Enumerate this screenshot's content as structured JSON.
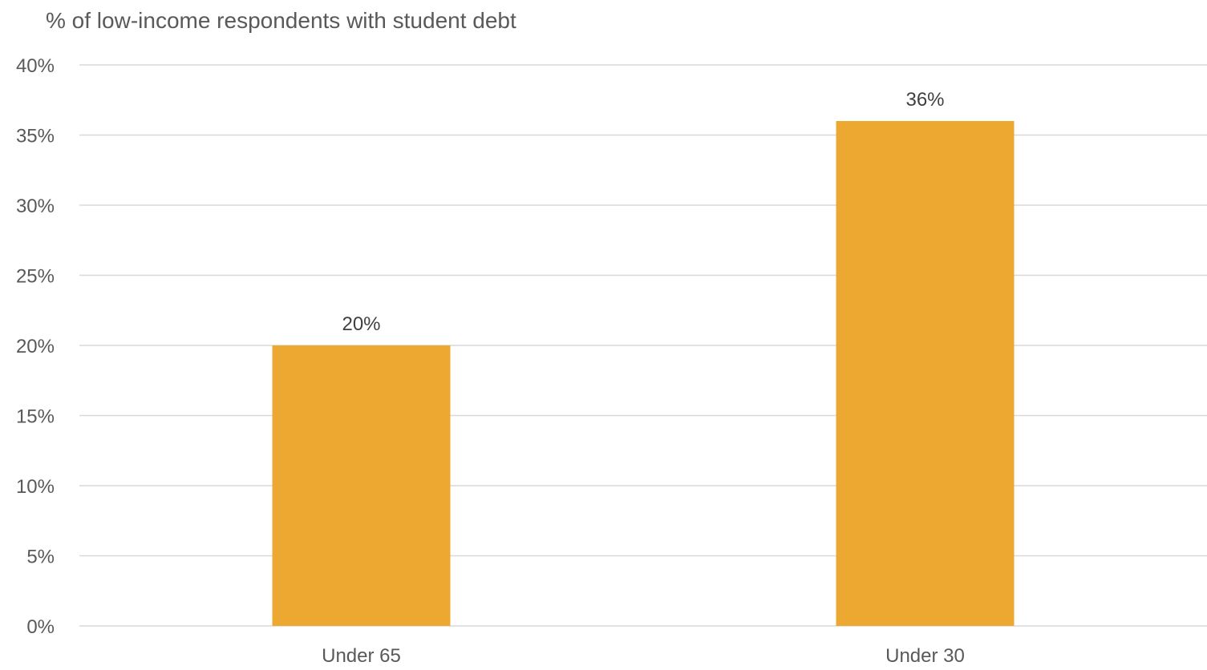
{
  "chart_data": {
    "type": "bar",
    "title": "% of low-income respondents with student debt",
    "xlabel": "",
    "ylabel": "",
    "categories": [
      "Under 65",
      "Under 30"
    ],
    "values": [
      20,
      36
    ],
    "data_labels": [
      "20%",
      "36%"
    ],
    "ylim": [
      0,
      40
    ],
    "y_ticks": [
      0,
      5,
      10,
      15,
      20,
      25,
      30,
      35,
      40
    ],
    "y_tick_labels": [
      "0%",
      "5%",
      "10%",
      "15%",
      "20%",
      "25%",
      "30%",
      "35%",
      "40%"
    ],
    "grid": true,
    "legend": "none",
    "bar_color": "#EDA832",
    "grid_color": "#D9D9D9"
  }
}
